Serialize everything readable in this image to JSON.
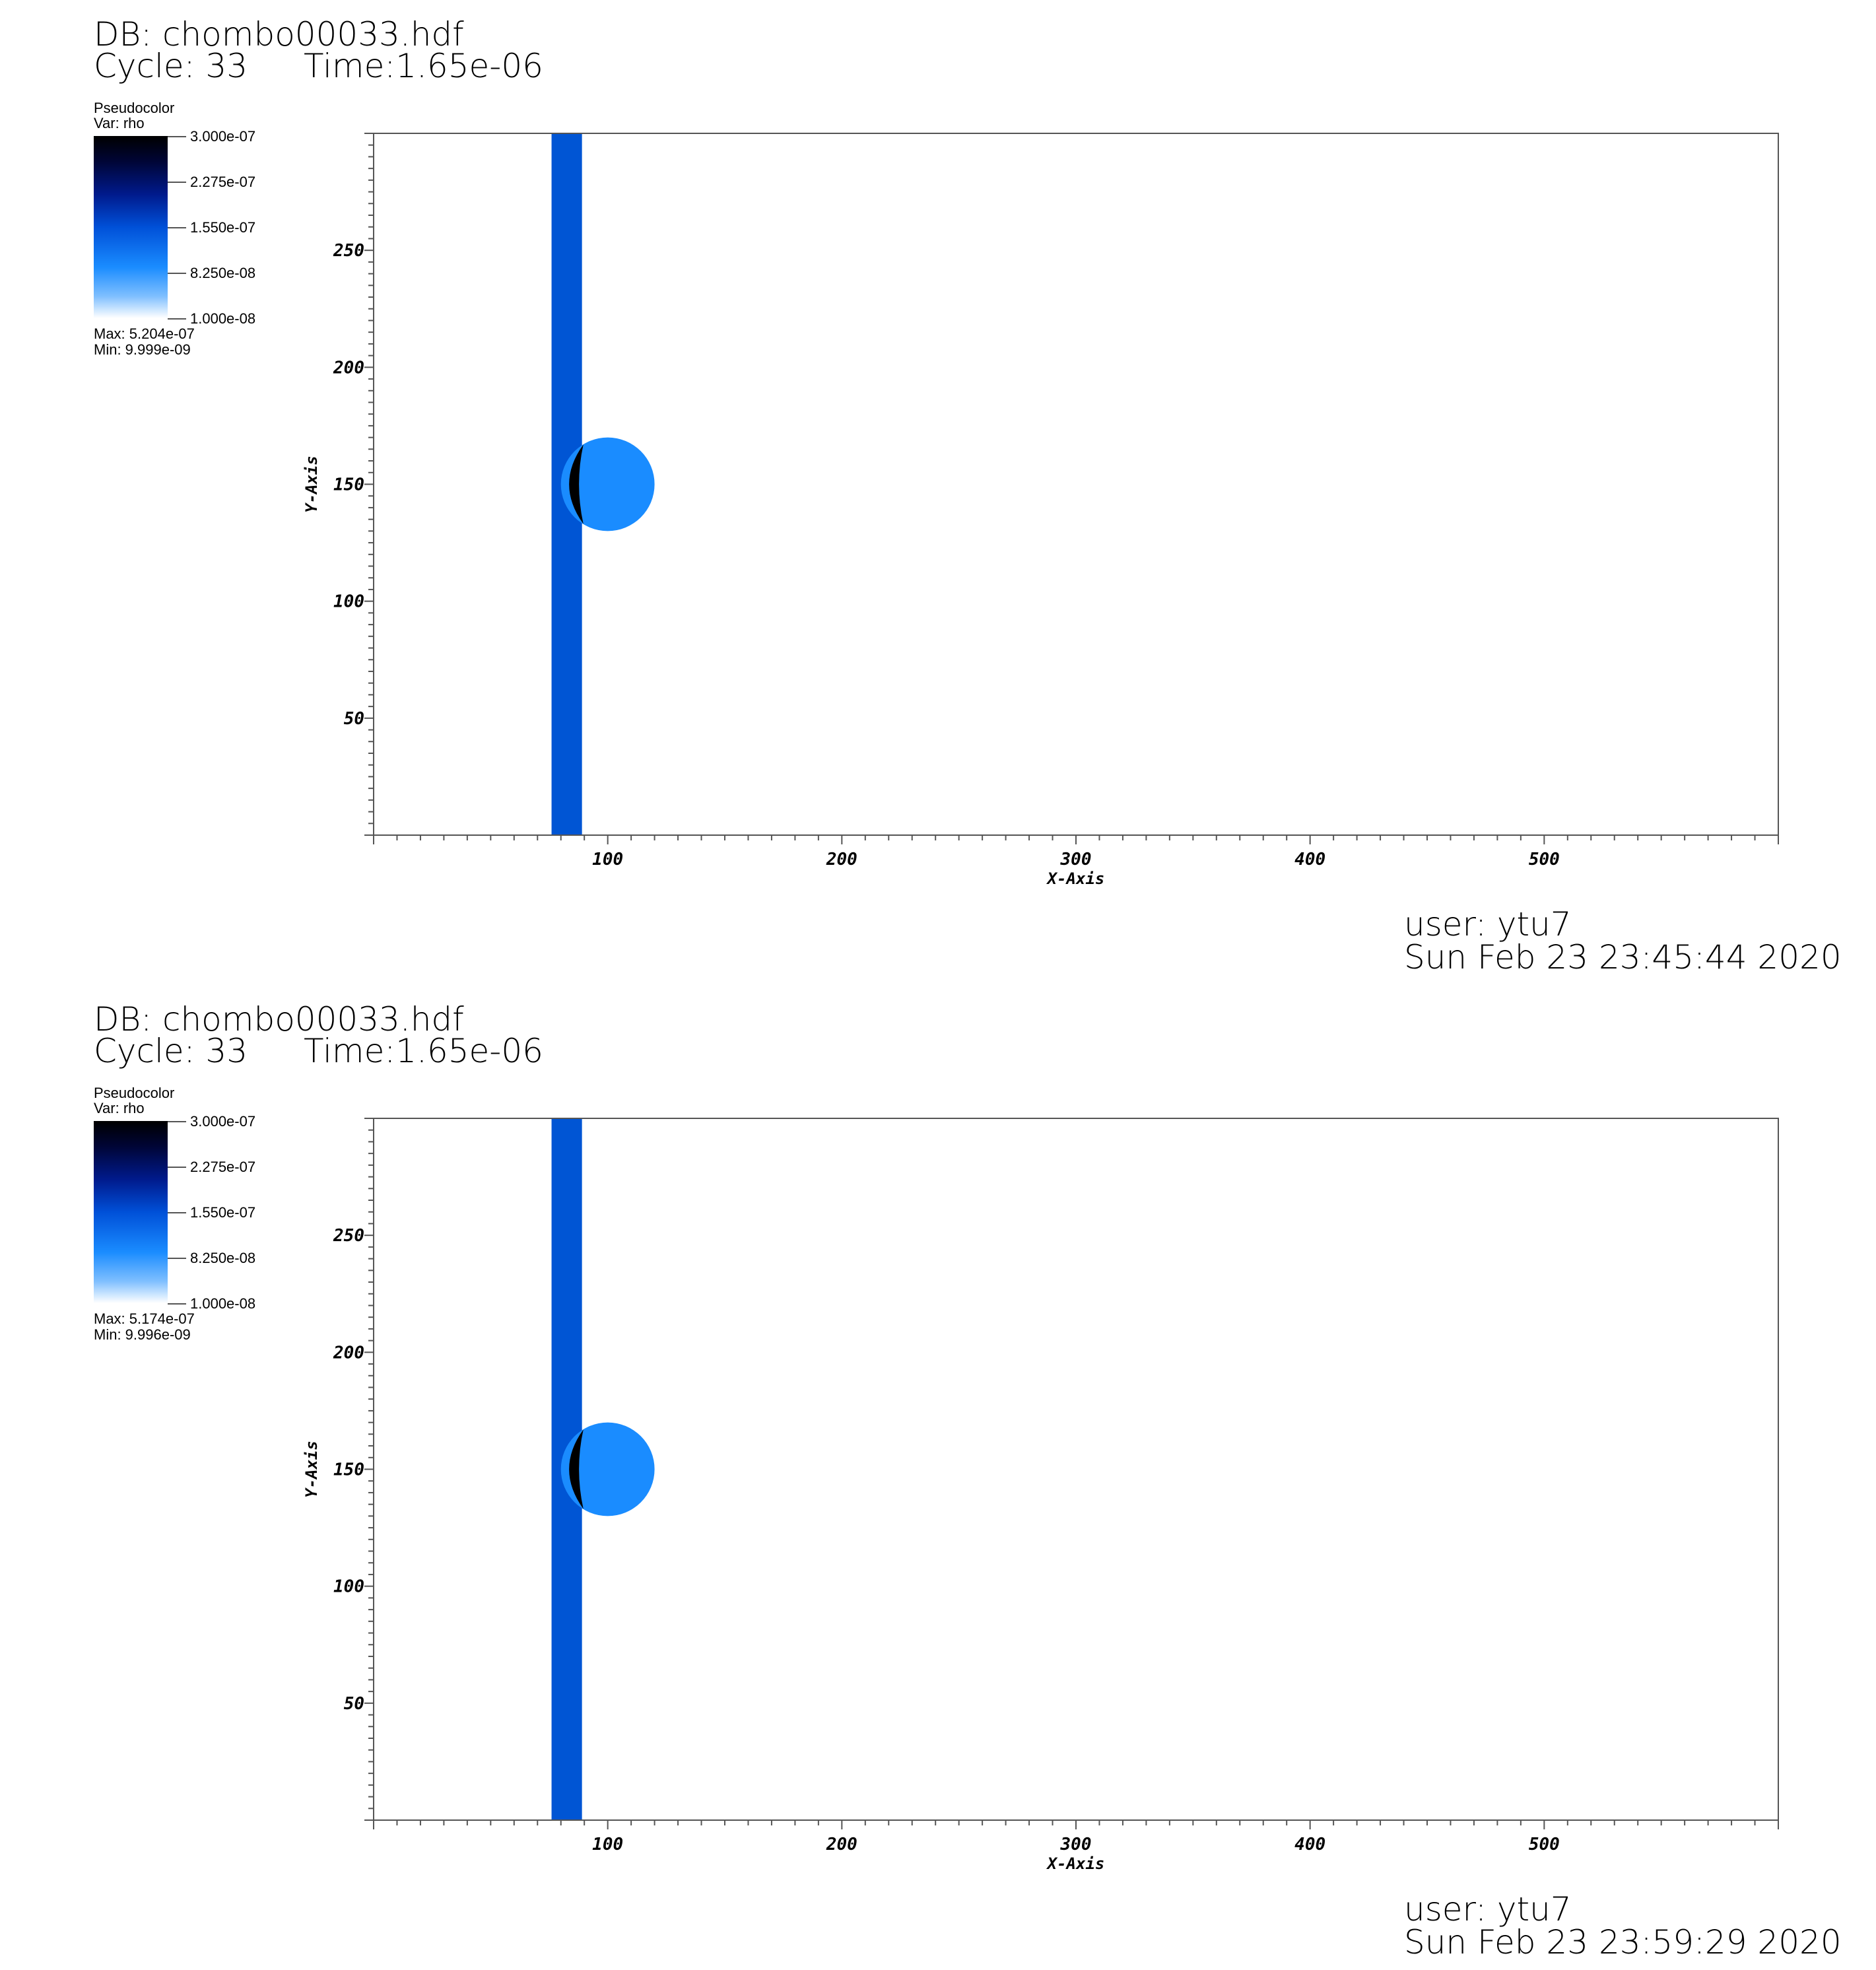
{
  "panels": [
    {
      "db_label": "DB: chombo00033.hdf",
      "cycle_label": "Cycle: 33",
      "time_label": "Time:1.65e-06",
      "legend": {
        "title": "Pseudocolor",
        "var": "Var: rho",
        "ticks": [
          "3.000e-07",
          "2.275e-07",
          "1.550e-07",
          "8.250e-08",
          "1.000e-08"
        ],
        "max": "Max:  5.204e-07",
        "min": "Min:  9.999e-09"
      },
      "user": "user: ytu7",
      "date": "Sun Feb 23 23:45:44 2020"
    },
    {
      "db_label": "DB: chombo00033.hdf",
      "cycle_label": "Cycle: 33",
      "time_label": "Time:1.65e-06",
      "legend": {
        "title": "Pseudocolor",
        "var": "Var: rho",
        "ticks": [
          "3.000e-07",
          "2.275e-07",
          "1.550e-07",
          "8.250e-08",
          "1.000e-08"
        ],
        "max": "Max:  5.174e-07",
        "min": "Min:  9.996e-09"
      },
      "user": "user: ytu7",
      "date": "Sun Feb 23 23:59:29 2020"
    }
  ],
  "chart_data": [
    {
      "type": "heatmap",
      "xlabel": "X-Axis",
      "ylabel": "Y-Axis",
      "xlim": [
        0,
        600
      ],
      "ylim": [
        0,
        300
      ],
      "xticks": [
        100,
        200,
        300,
        400,
        500
      ],
      "yticks": [
        50,
        100,
        150,
        200,
        250
      ],
      "variable": "rho",
      "color_range": [
        1e-08,
        3e-07
      ],
      "features": {
        "shock_band": {
          "x0": 76,
          "x1": 89,
          "color": "#0055d4"
        },
        "bubble": {
          "cx": 100,
          "cy": 150,
          "r": 20,
          "color": "#1a8cff"
        },
        "dense_edge_color": "#000000"
      }
    },
    {
      "type": "heatmap",
      "xlabel": "X-Axis",
      "ylabel": "Y-Axis",
      "xlim": [
        0,
        600
      ],
      "ylim": [
        0,
        300
      ],
      "xticks": [
        100,
        200,
        300,
        400,
        500
      ],
      "yticks": [
        50,
        100,
        150,
        200,
        250
      ],
      "variable": "rho",
      "color_range": [
        1e-08,
        3e-07
      ],
      "features": {
        "shock_band": {
          "x0": 76,
          "x1": 89,
          "color": "#0055d4"
        },
        "bubble": {
          "cx": 100,
          "cy": 150,
          "r": 20,
          "color": "#1a8cff"
        },
        "dense_edge_color": "#000000"
      }
    }
  ]
}
